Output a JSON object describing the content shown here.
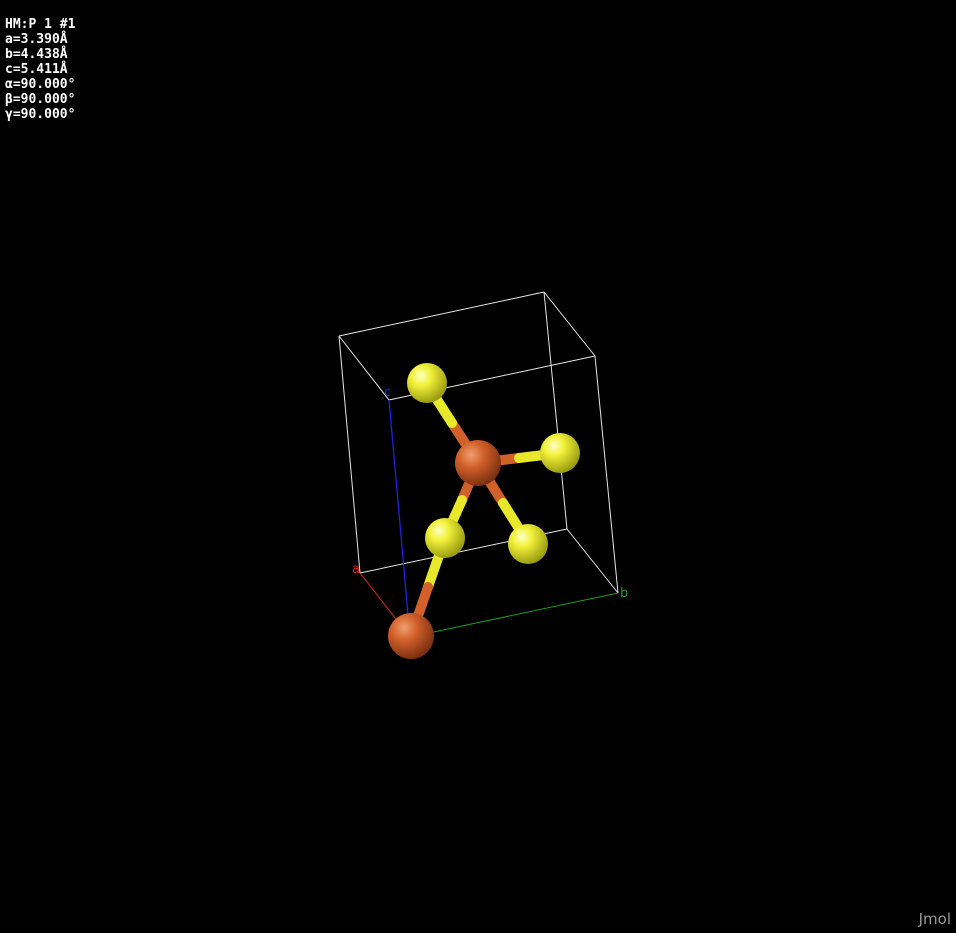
{
  "cell_info": {
    "space_group": "HM:P 1 #1",
    "a": "a=3.390Å",
    "b": "b=4.438Å",
    "c": "c=5.411Å",
    "alpha": "α=90.000°",
    "beta": "β=90.000°",
    "gamma": "γ=90.000°"
  },
  "axes": {
    "a_label": "a",
    "b_label": "b",
    "c_label": "c",
    "a_color": "#e0201f",
    "b_color": "#1f9a1f",
    "c_color": "#2020e0"
  },
  "atoms": {
    "sulfur_color": "#f0f020",
    "iron_color": "#d2602a"
  },
  "watermark": "Jmol"
}
